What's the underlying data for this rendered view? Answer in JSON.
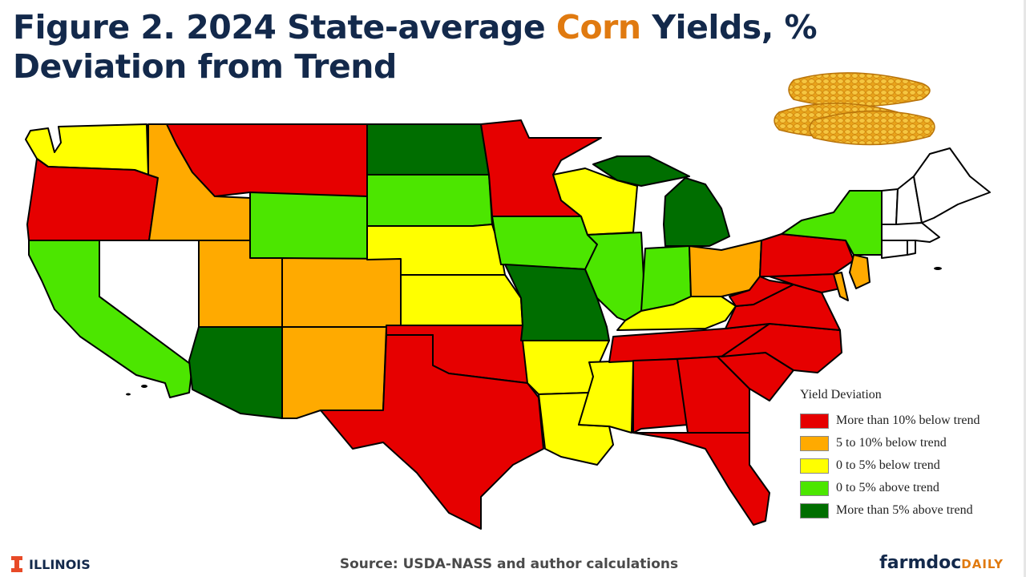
{
  "title": {
    "part1": "Figure 2. 2024 State-average ",
    "accent": "Corn",
    "part2": " Yields, % Deviation from Trend"
  },
  "colors": {
    "more_than_10_below": "#e60000",
    "5_to_10_below": "#ffaa00",
    "0_to_5_below": "#ffff00",
    "0_to_5_above": "#4ce600",
    "more_than_5_above": "#006e00",
    "no_data": "#ffffff",
    "title_text": "#13294b",
    "title_accent": "#e07a10"
  },
  "legend": {
    "title": "Yield Deviation",
    "items": [
      {
        "label": "More than 10% below trend",
        "category": "more_than_10_below"
      },
      {
        "label": "5 to 10% below trend",
        "category": "5_to_10_below"
      },
      {
        "label": "0 to 5% below trend",
        "category": "0_to_5_below"
      },
      {
        "label": "0 to 5% above trend",
        "category": "0_to_5_above"
      },
      {
        "label": "More than 5% above trend",
        "category": "more_than_5_above"
      }
    ]
  },
  "states": [
    {
      "code": "WA",
      "category": "0_to_5_below"
    },
    {
      "code": "OR",
      "category": "more_than_10_below"
    },
    {
      "code": "CA",
      "category": "0_to_5_above"
    },
    {
      "code": "NV",
      "category": "no_data"
    },
    {
      "code": "ID",
      "category": "5_to_10_below"
    },
    {
      "code": "MT",
      "category": "more_than_10_below"
    },
    {
      "code": "WY",
      "category": "0_to_5_above"
    },
    {
      "code": "UT",
      "category": "5_to_10_below"
    },
    {
      "code": "CO",
      "category": "5_to_10_below"
    },
    {
      "code": "AZ",
      "category": "more_than_5_above"
    },
    {
      "code": "NM",
      "category": "5_to_10_below"
    },
    {
      "code": "ND",
      "category": "more_than_5_above"
    },
    {
      "code": "SD",
      "category": "0_to_5_above"
    },
    {
      "code": "NE",
      "category": "0_to_5_below"
    },
    {
      "code": "KS",
      "category": "0_to_5_below"
    },
    {
      "code": "OK",
      "category": "more_than_10_below"
    },
    {
      "code": "TX",
      "category": "more_than_10_below"
    },
    {
      "code": "MN",
      "category": "more_than_10_below"
    },
    {
      "code": "IA",
      "category": "0_to_5_above"
    },
    {
      "code": "MO",
      "category": "more_than_5_above"
    },
    {
      "code": "AR",
      "category": "0_to_5_below"
    },
    {
      "code": "LA",
      "category": "0_to_5_below"
    },
    {
      "code": "WI",
      "category": "0_to_5_below"
    },
    {
      "code": "IL",
      "category": "0_to_5_above"
    },
    {
      "code": "MS",
      "category": "0_to_5_below"
    },
    {
      "code": "MI",
      "category": "more_than_5_above"
    },
    {
      "code": "IN",
      "category": "0_to_5_above"
    },
    {
      "code": "KY",
      "category": "0_to_5_below"
    },
    {
      "code": "TN",
      "category": "more_than_10_below"
    },
    {
      "code": "AL",
      "category": "more_than_10_below"
    },
    {
      "code": "OH",
      "category": "5_to_10_below"
    },
    {
      "code": "GA",
      "category": "more_than_10_below"
    },
    {
      "code": "FL",
      "category": "more_than_10_below"
    },
    {
      "code": "SC",
      "category": "more_than_10_below"
    },
    {
      "code": "NC",
      "category": "more_than_10_below"
    },
    {
      "code": "VA",
      "category": "more_than_10_below"
    },
    {
      "code": "WV",
      "category": "more_than_10_below"
    },
    {
      "code": "MD",
      "category": "more_than_10_below"
    },
    {
      "code": "DE",
      "category": "5_to_10_below"
    },
    {
      "code": "PA",
      "category": "more_than_10_below"
    },
    {
      "code": "NJ",
      "category": "5_to_10_below"
    },
    {
      "code": "NY",
      "category": "0_to_5_above"
    },
    {
      "code": "CT",
      "category": "no_data"
    },
    {
      "code": "RI",
      "category": "no_data"
    },
    {
      "code": "MA",
      "category": "no_data"
    },
    {
      "code": "VT",
      "category": "no_data"
    },
    {
      "code": "NH",
      "category": "no_data"
    },
    {
      "code": "ME",
      "category": "no_data"
    }
  ],
  "illustration": "corn-cobs",
  "footer": {
    "source": "Source: USDA-NASS and author calculations",
    "left_logo": "ILLINOIS",
    "right_logo_main": "farmdoc",
    "right_logo_accent": "DAILY"
  }
}
